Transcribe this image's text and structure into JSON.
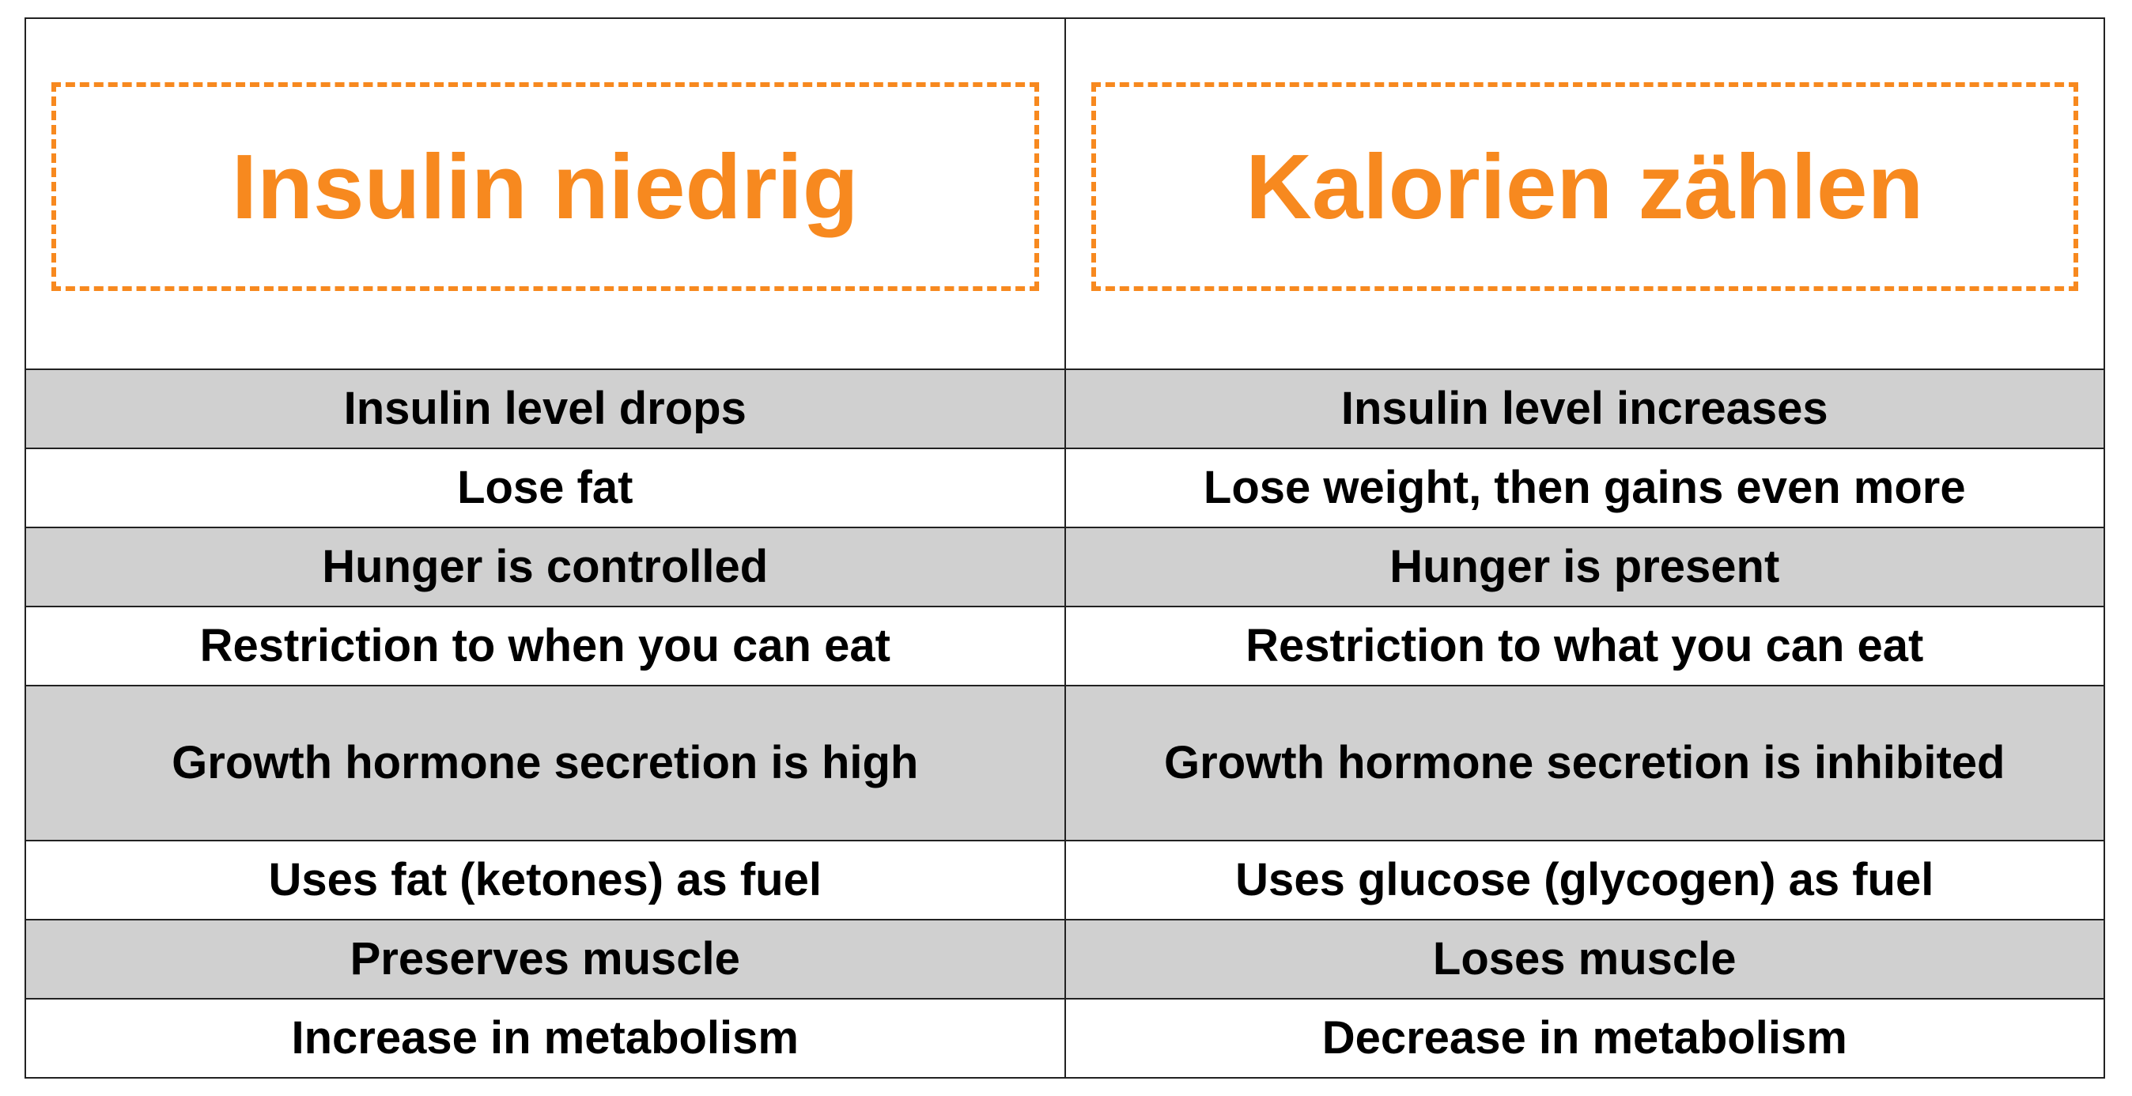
{
  "header": {
    "columns": [
      "Insulin niedrig",
      "Kalorien zählen"
    ]
  },
  "table": {
    "rows": [
      [
        "Insulin level drops",
        "Insulin level increases"
      ],
      [
        "Lose fat",
        "Lose weight, then gains even more"
      ],
      [
        "Hunger is controlled",
        "Hunger is present"
      ],
      [
        "Restriction to when you can eat",
        "Restriction to what you can eat"
      ],
      [
        "Growth hormone secretion is high",
        "Growth hormone secretion is inhibited"
      ],
      [
        "Uses fat (ketones) as fuel",
        "Uses glucose (glycogen) as fuel"
      ],
      [
        "Preserves muscle",
        "Loses muscle"
      ],
      [
        "Increase in metabolism",
        "Decrease in metabolism"
      ]
    ]
  }
}
